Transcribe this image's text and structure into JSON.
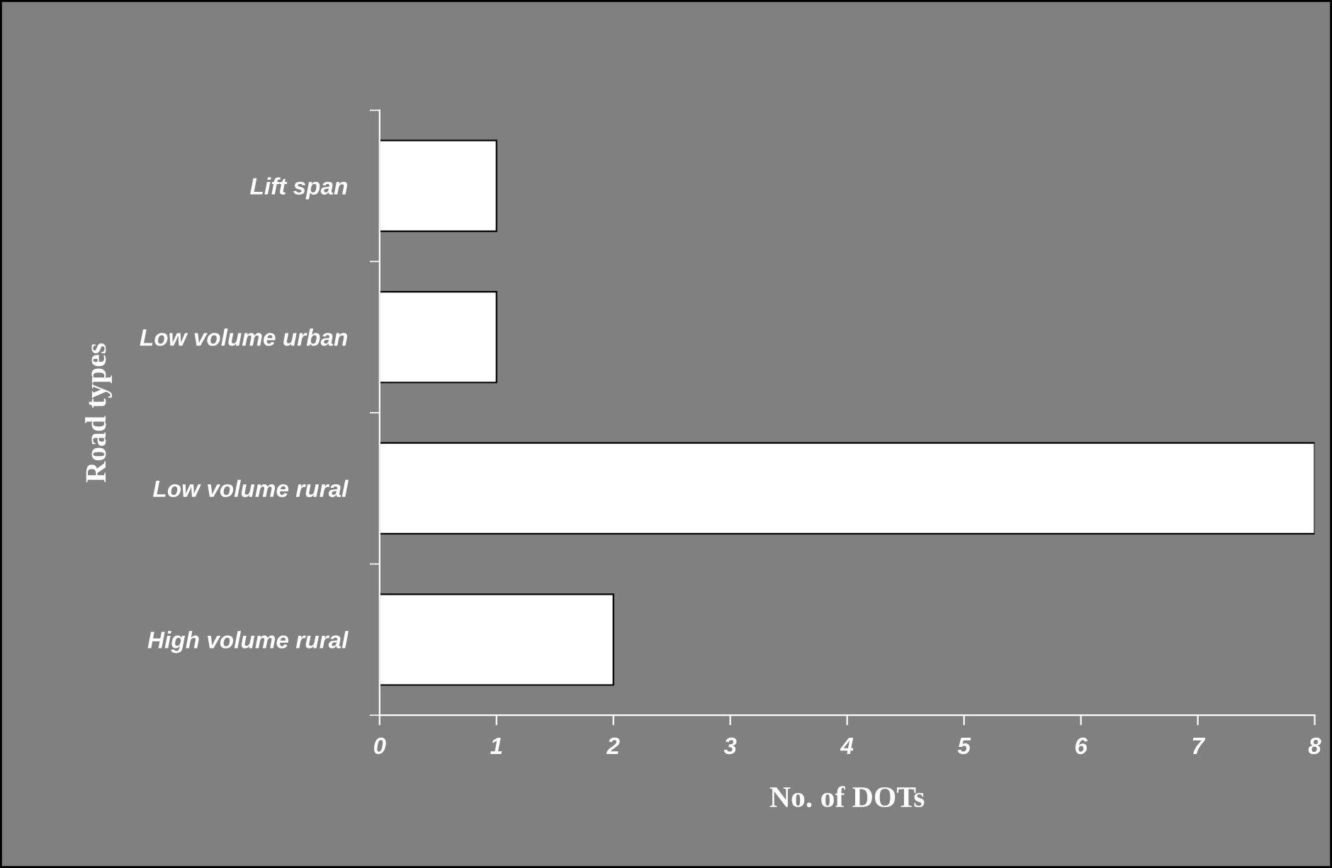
{
  "chart_data": {
    "type": "bar",
    "orientation": "horizontal",
    "xlabel": "No. of DOTs",
    "ylabel": "Road types",
    "categories": [
      "Lift span",
      "Low volume urban",
      "Low volume rural",
      "High volume rural"
    ],
    "values": [
      1,
      1,
      8,
      2
    ],
    "color": "#ffffff",
    "xlim": [
      0,
      8
    ],
    "xticks": [
      0,
      1,
      2,
      3,
      4,
      5,
      6,
      7,
      8
    ],
    "grid": false,
    "legend": false
  }
}
